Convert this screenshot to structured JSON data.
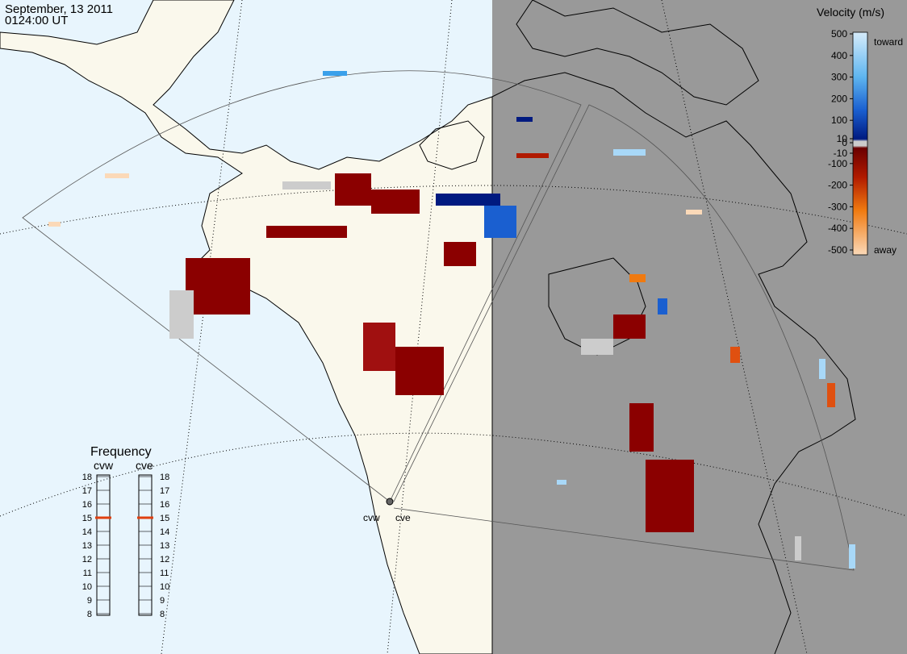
{
  "header": {
    "date": "September, 13 2011",
    "time": "0124:00 UT"
  },
  "colorbar": {
    "title": "Velocity (m/s)",
    "ticks": [
      500,
      400,
      300,
      200,
      100,
      10,
      0,
      -10,
      -100,
      -200,
      -300,
      -400,
      -500
    ],
    "top_label": "toward",
    "bottom_label": "away"
  },
  "frequency": {
    "title": "Frequency",
    "ticks": [
      18,
      17,
      16,
      15,
      14,
      13,
      12,
      11,
      10,
      9,
      8
    ],
    "radars": [
      {
        "name": "cvw",
        "value": 15
      },
      {
        "name": "cve",
        "value": 15
      }
    ]
  },
  "sites": [
    "cvw",
    "cve"
  ]
}
